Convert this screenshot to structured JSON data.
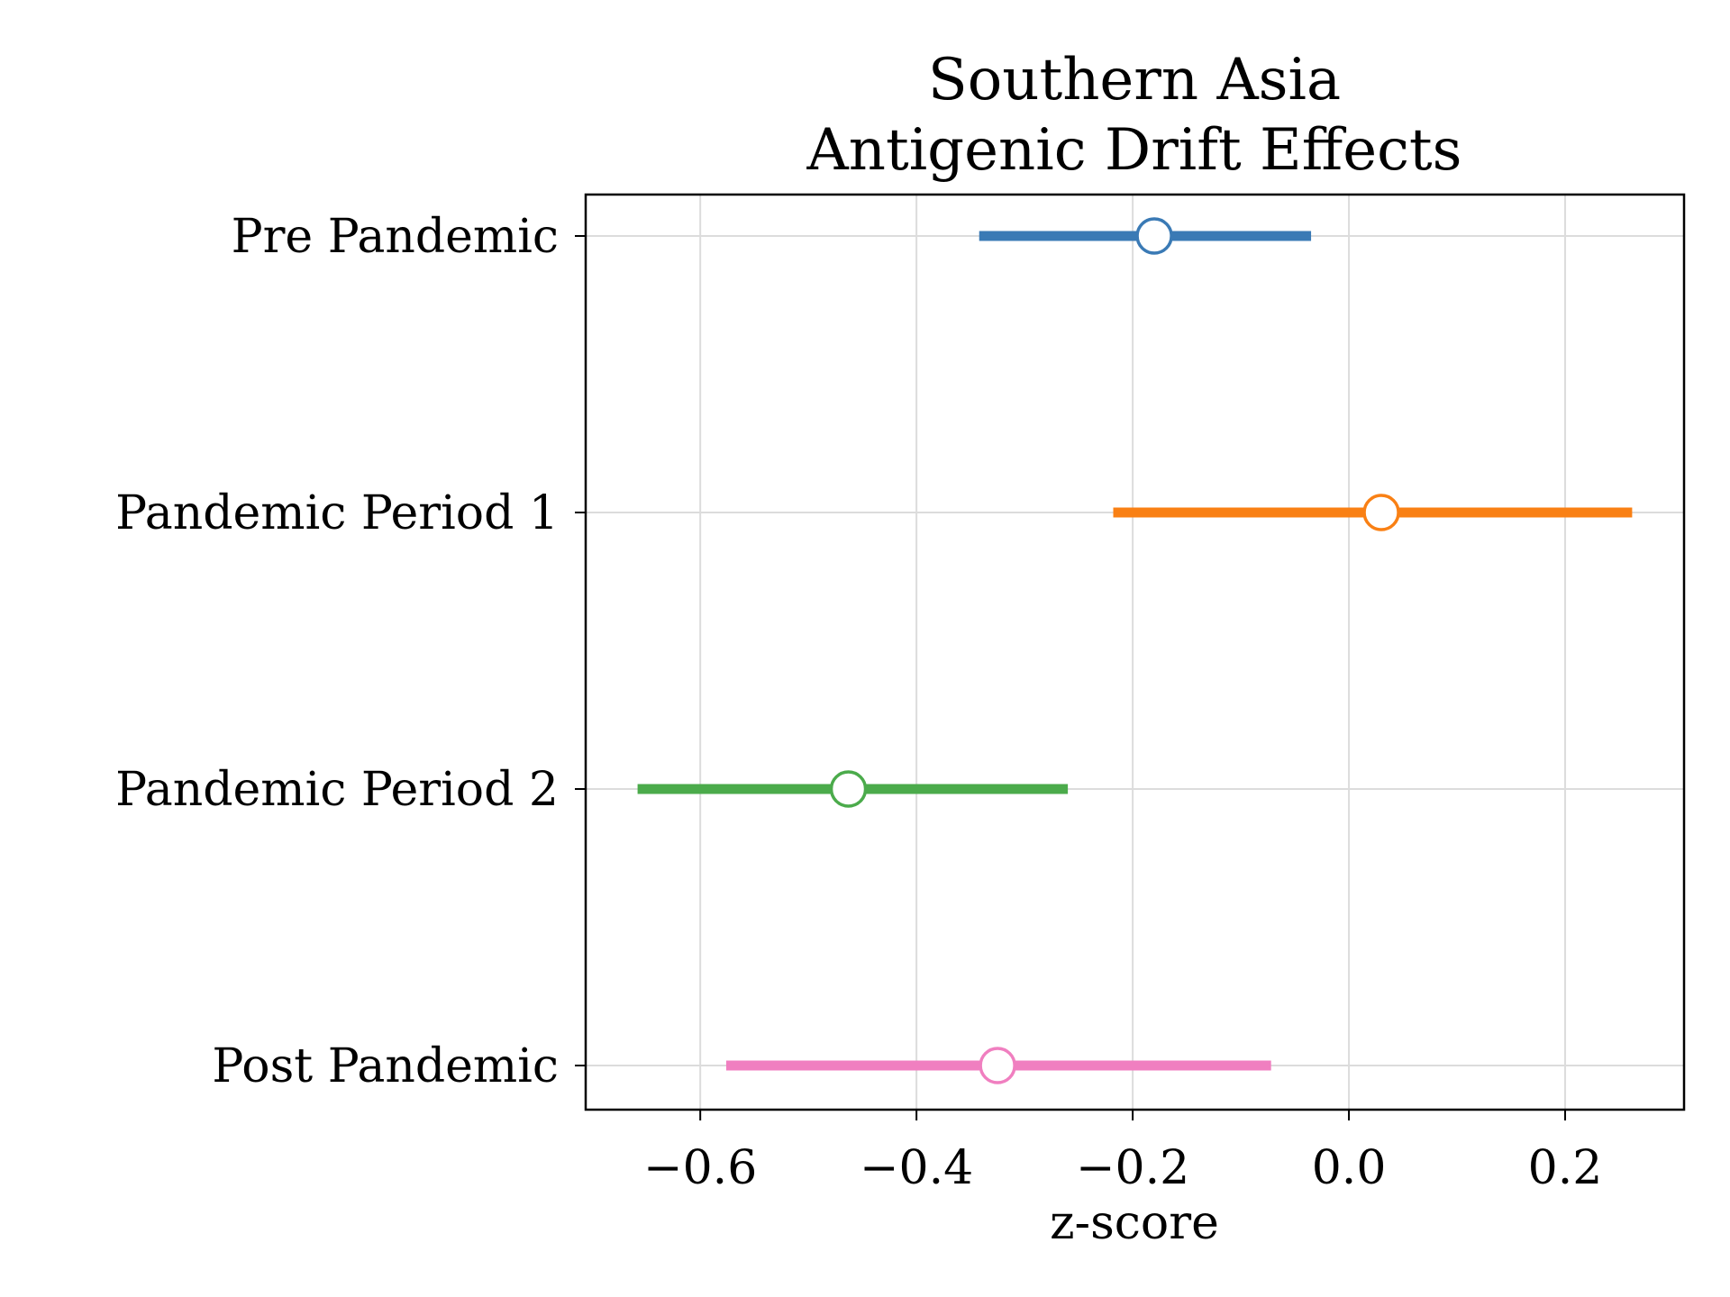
{
  "chart_data": {
    "type": "forest",
    "title": [
      "Southern Asia",
      "Antigenic Drift Effects"
    ],
    "xlabel": "z-score",
    "ylabel": "",
    "xlim": [
      -0.706,
      0.31
    ],
    "xticks": [
      -0.6,
      -0.4,
      -0.2,
      0.0,
      0.2
    ],
    "xtick_labels": [
      "−0.6",
      "−0.4",
      "−0.2",
      "0.0",
      "0.2"
    ],
    "grid": true,
    "rows": [
      {
        "label": "Pre Pandemic",
        "estimate": -0.18,
        "lower": -0.342,
        "upper": -0.035,
        "color": "#3a7ab5"
      },
      {
        "label": "Pandemic Period 1",
        "estimate": 0.03,
        "lower": -0.218,
        "upper": 0.262,
        "color": "#f98014"
      },
      {
        "label": "Pandemic Period 2",
        "estimate": -0.463,
        "lower": -0.658,
        "upper": -0.26,
        "color": "#4bab4b"
      },
      {
        "label": "Post Pandemic",
        "estimate": -0.325,
        "lower": -0.576,
        "upper": -0.072,
        "color": "#f07fc0"
      }
    ]
  }
}
